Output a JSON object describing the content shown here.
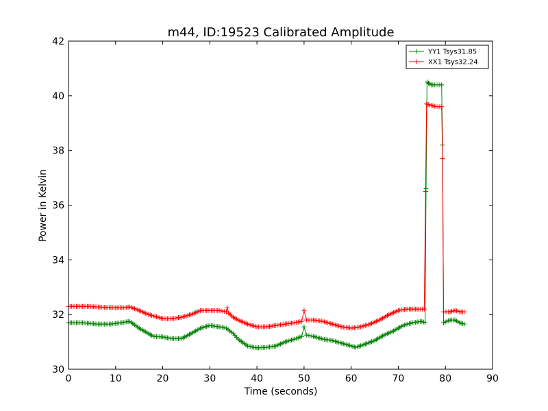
{
  "chart_data": {
    "type": "line",
    "title": "m44, ID:19523 Calibrated Amplitude",
    "xlabel": "Time (seconds)",
    "ylabel": "Power in Kelvin",
    "xlim": [
      0,
      90
    ],
    "ylim": [
      30,
      42
    ],
    "xticks": [
      0,
      10,
      20,
      30,
      40,
      50,
      60,
      70,
      80,
      90
    ],
    "yticks": [
      30,
      32,
      34,
      36,
      38,
      40,
      42
    ],
    "grid": false,
    "legend_position": "top-right",
    "marker": "+",
    "series": [
      {
        "name": "YY1 Tsys31.85",
        "color": "#008000",
        "points": [
          [
            0,
            31.7
          ],
          [
            3,
            31.7
          ],
          [
            6,
            31.65
          ],
          [
            9,
            31.65
          ],
          [
            12,
            31.72
          ],
          [
            13,
            31.75
          ],
          [
            15,
            31.5
          ],
          [
            17,
            31.3
          ],
          [
            18,
            31.2
          ],
          [
            20,
            31.18
          ],
          [
            22,
            31.12
          ],
          [
            24,
            31.12
          ],
          [
            26,
            31.3
          ],
          [
            28,
            31.5
          ],
          [
            30,
            31.6
          ],
          [
            32,
            31.55
          ],
          [
            33,
            31.52
          ],
          [
            33.5,
            31.5
          ],
          [
            35,
            31.3
          ],
          [
            36,
            31.1
          ],
          [
            38,
            30.85
          ],
          [
            40,
            30.78
          ],
          [
            42,
            30.8
          ],
          [
            44,
            30.85
          ],
          [
            46,
            31.0
          ],
          [
            48,
            31.1
          ],
          [
            49.5,
            31.2
          ],
          [
            50,
            31.55
          ],
          [
            50.5,
            31.25
          ],
          [
            52,
            31.2
          ],
          [
            54,
            31.1
          ],
          [
            56,
            31.05
          ],
          [
            58,
            30.95
          ],
          [
            60,
            30.85
          ],
          [
            61,
            30.8
          ],
          [
            63,
            30.92
          ],
          [
            65,
            31.05
          ],
          [
            67,
            31.25
          ],
          [
            69,
            31.4
          ],
          [
            71,
            31.6
          ],
          [
            73,
            31.7
          ],
          [
            75,
            31.75
          ],
          [
            75.7,
            31.7
          ],
          [
            75.9,
            36.6
          ],
          [
            76.1,
            40.5
          ],
          [
            77,
            40.4
          ],
          [
            78,
            40.4
          ],
          [
            79.2,
            40.4
          ],
          [
            79.4,
            38.2
          ],
          [
            79.6,
            31.7
          ],
          [
            81,
            31.8
          ],
          [
            82,
            31.8
          ],
          [
            83,
            31.7
          ],
          [
            84,
            31.65
          ]
        ]
      },
      {
        "name": "XX1 Tsys32.24",
        "color": "#ff0000",
        "points": [
          [
            0,
            32.3
          ],
          [
            2,
            32.3
          ],
          [
            4,
            32.3
          ],
          [
            6,
            32.28
          ],
          [
            8,
            32.26
          ],
          [
            10,
            32.25
          ],
          [
            12,
            32.25
          ],
          [
            13,
            32.28
          ],
          [
            15,
            32.15
          ],
          [
            17,
            32.0
          ],
          [
            19,
            31.9
          ],
          [
            20,
            31.85
          ],
          [
            22,
            31.85
          ],
          [
            24,
            31.9
          ],
          [
            26,
            32.0
          ],
          [
            28,
            32.15
          ],
          [
            30,
            32.15
          ],
          [
            32,
            32.15
          ],
          [
            33.5,
            32.1
          ],
          [
            33.7,
            32.25
          ],
          [
            34,
            32.05
          ],
          [
            35,
            31.9
          ],
          [
            36,
            31.8
          ],
          [
            38,
            31.65
          ],
          [
            40,
            31.55
          ],
          [
            42,
            31.55
          ],
          [
            44,
            31.6
          ],
          [
            46,
            31.65
          ],
          [
            48,
            31.7
          ],
          [
            49.5,
            31.75
          ],
          [
            50,
            32.15
          ],
          [
            50.5,
            31.8
          ],
          [
            52,
            31.8
          ],
          [
            54,
            31.75
          ],
          [
            56,
            31.65
          ],
          [
            58,
            31.55
          ],
          [
            60,
            31.5
          ],
          [
            62,
            31.55
          ],
          [
            64,
            31.65
          ],
          [
            66,
            31.8
          ],
          [
            68,
            32.0
          ],
          [
            70,
            32.15
          ],
          [
            72,
            32.2
          ],
          [
            74,
            32.2
          ],
          [
            75.5,
            32.2
          ],
          [
            75.8,
            36.5
          ],
          [
            76,
            39.7
          ],
          [
            77,
            39.65
          ],
          [
            78,
            39.6
          ],
          [
            79.2,
            39.6
          ],
          [
            79.4,
            37.7
          ],
          [
            79.6,
            32.1
          ],
          [
            81,
            32.1
          ],
          [
            82,
            32.15
          ],
          [
            83,
            32.1
          ],
          [
            84,
            32.1
          ]
        ]
      }
    ]
  }
}
